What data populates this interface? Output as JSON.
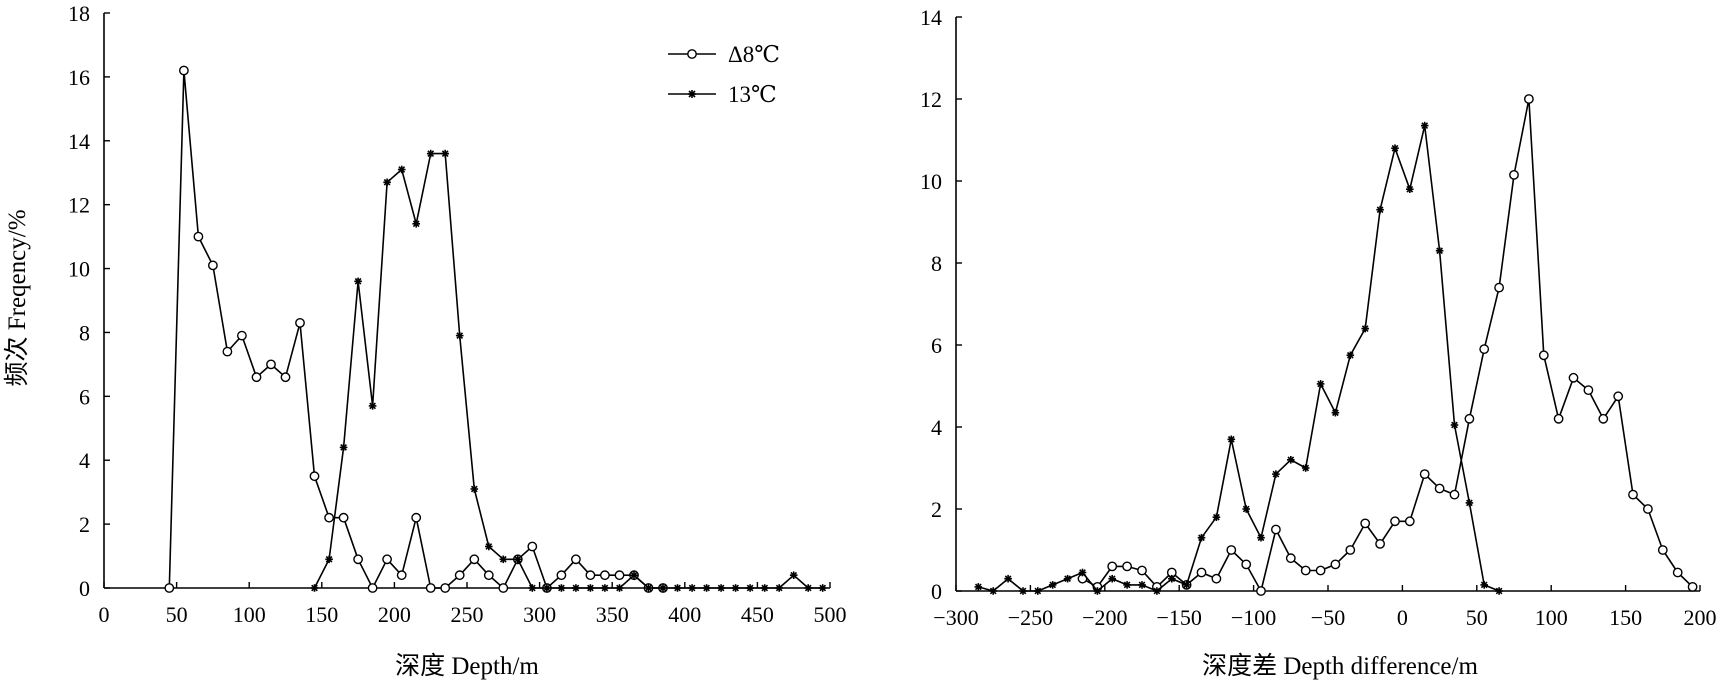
{
  "chart_data": [
    {
      "type": "line",
      "title": "",
      "xlabel": "深度 Depth/m",
      "ylabel": "频次 Freqency/%",
      "xlim": [
        0,
        500
      ],
      "ylim": [
        0,
        18
      ],
      "xticks": [
        0,
        50,
        100,
        150,
        200,
        250,
        300,
        350,
        400,
        450,
        500
      ],
      "yticks": [
        0,
        2,
        4,
        6,
        8,
        10,
        12,
        14,
        16,
        18
      ],
      "grid": false,
      "legend_position": "top-right",
      "series": [
        {
          "name": "Δ8℃",
          "marker": "open-circle",
          "x": [
            45,
            55,
            65,
            75,
            85,
            95,
            105,
            115,
            125,
            135,
            145,
            155,
            165,
            175,
            185,
            195,
            205,
            215,
            225,
            235,
            245,
            255,
            265,
            275,
            285,
            295,
            305,
            315,
            325,
            335,
            345,
            355,
            365,
            375,
            385
          ],
          "y": [
            0,
            16.2,
            11.0,
            10.1,
            7.4,
            7.9,
            6.6,
            7.0,
            6.6,
            8.3,
            3.5,
            2.2,
            2.2,
            0.9,
            0,
            0.9,
            0.4,
            2.2,
            0,
            0,
            0.4,
            0.9,
            0.4,
            0,
            0.9,
            1.3,
            0,
            0.4,
            0.9,
            0.4,
            0.4,
            0.4,
            0.4,
            0,
            0
          ]
        },
        {
          "name": "13℃",
          "marker": "star",
          "x": [
            145,
            155,
            165,
            175,
            185,
            195,
            205,
            215,
            225,
            235,
            245,
            255,
            265,
            275,
            285,
            295,
            305,
            315,
            325,
            335,
            345,
            355,
            365,
            375,
            385,
            395,
            405,
            415,
            425,
            435,
            445,
            455,
            465,
            475,
            485,
            495
          ],
          "y": [
            0,
            0.9,
            4.4,
            9.6,
            5.7,
            12.7,
            13.1,
            11.4,
            13.6,
            13.6,
            7.9,
            3.1,
            1.3,
            0.9,
            0.9,
            0,
            0,
            0,
            0,
            0,
            0,
            0,
            0.4,
            0,
            0,
            0,
            0,
            0,
            0,
            0,
            0,
            0,
            0,
            0.4,
            0,
            0
          ]
        }
      ]
    },
    {
      "type": "line",
      "title": "",
      "xlabel": "深度差 Depth difference/m",
      "ylabel": "",
      "xlim": [
        -300,
        200
      ],
      "ylim": [
        0,
        14
      ],
      "xticks": [
        -300,
        -250,
        -200,
        -150,
        -100,
        -50,
        0,
        50,
        100,
        150,
        200
      ],
      "yticks": [
        0,
        2,
        4,
        6,
        8,
        10,
        12,
        14
      ],
      "grid": false,
      "series": [
        {
          "name": "",
          "marker": "open-circle",
          "x": [
            -215,
            -205,
            -195,
            -185,
            -175,
            -165,
            -155,
            -145,
            -135,
            -125,
            -115,
            -105,
            -95,
            -85,
            -75,
            -65,
            -55,
            -45,
            -35,
            -25,
            -15,
            -5,
            5,
            15,
            25,
            35,
            45,
            55,
            65,
            75,
            85,
            95,
            105,
            115,
            125,
            135,
            145,
            155,
            165,
            175,
            185,
            195
          ],
          "y": [
            0.3,
            0.1,
            0.6,
            0.6,
            0.5,
            0.1,
            0.45,
            0.15,
            0.45,
            0.3,
            1.0,
            0.65,
            0,
            1.5,
            0.8,
            0.5,
            0.5,
            0.65,
            1.0,
            1.65,
            1.15,
            1.7,
            1.7,
            2.85,
            2.5,
            2.35,
            4.2,
            5.9,
            7.4,
            10.15,
            12.0,
            5.75,
            4.2,
            5.2,
            4.9,
            4.2,
            4.75,
            2.35,
            2.0,
            1.0,
            0.45,
            0.1
          ]
        },
        {
          "name": "",
          "marker": "star",
          "x": [
            -285,
            -275,
            -265,
            -255,
            -245,
            -235,
            -225,
            -215,
            -205,
            -195,
            -185,
            -175,
            -165,
            -155,
            -145,
            -135,
            -125,
            -115,
            -105,
            -95,
            -85,
            -75,
            -65,
            -55,
            -45,
            -35,
            -25,
            -15,
            -5,
            5,
            15,
            25,
            35,
            45,
            55,
            65
          ],
          "y": [
            0.1,
            0,
            0.3,
            0,
            0,
            0.15,
            0.3,
            0.45,
            0,
            0.3,
            0.15,
            0.15,
            0,
            0.3,
            0.15,
            1.3,
            1.8,
            3.7,
            2.0,
            1.3,
            2.85,
            3.2,
            3.0,
            5.05,
            4.35,
            5.75,
            6.4,
            9.3,
            10.8,
            9.8,
            11.35,
            8.3,
            4.05,
            2.15,
            0.15,
            0
          ]
        }
      ]
    }
  ]
}
